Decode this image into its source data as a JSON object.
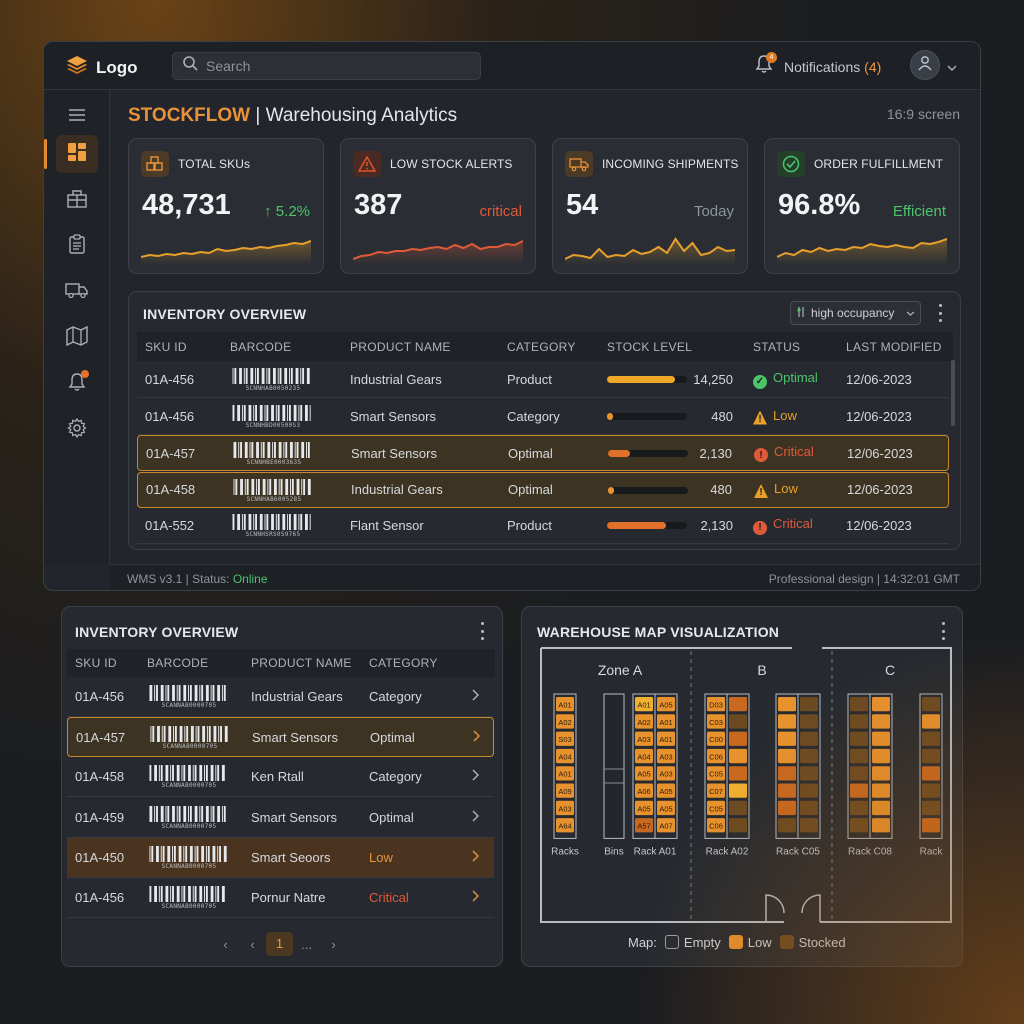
{
  "topbar": {
    "logo_text": "Logo",
    "search_placeholder": "Search",
    "notifications_label": "Notifications",
    "notifications_count": "(4)",
    "notifications_badge": "4"
  },
  "header": {
    "brand": "STOCKFLOW",
    "separator": " | ",
    "title": "Warehousing Analytics",
    "screen_label": "16:9 screen"
  },
  "kpis": [
    {
      "title": "TOTAL SKUs",
      "value": "48,731",
      "note": "↑ 5.2%",
      "note_color": "#4cc46a",
      "icon": "boxes-icon",
      "trend": [
        22,
        20,
        21,
        19,
        20,
        18,
        19,
        17,
        18,
        14,
        16,
        15,
        13,
        14,
        12,
        13,
        11,
        10,
        8,
        9,
        6
      ]
    },
    {
      "title": "LOW STOCK ALERTS",
      "value": "387",
      "note": "critical",
      "note_color": "#e05a3a",
      "icon": "warning-icon",
      "trend": [
        24,
        21,
        20,
        17,
        18,
        16,
        16,
        14,
        15,
        13,
        12,
        14,
        10,
        13,
        9,
        14,
        12,
        12,
        9,
        10,
        6
      ]
    },
    {
      "title": "INCOMING SHIPMENTS",
      "value": "54",
      "note": "Today",
      "note_color": "#8e949c",
      "icon": "truck-icon",
      "trend": [
        24,
        20,
        21,
        23,
        14,
        22,
        20,
        21,
        15,
        19,
        17,
        12,
        18,
        4,
        16,
        8,
        20,
        18,
        12,
        16,
        15
      ]
    },
    {
      "title": "ORDER FULFILLMENT",
      "value": "96.8%",
      "note": "Efficient",
      "note_color": "#4cc46a",
      "icon": "check-circle-icon",
      "trend": [
        22,
        18,
        20,
        15,
        17,
        13,
        16,
        14,
        15,
        12,
        13,
        9,
        11,
        12,
        10,
        12,
        13,
        8,
        9,
        7,
        4
      ]
    }
  ],
  "inventory_main": {
    "title": "INVENTORY OVERVIEW",
    "filter_label": "high occupancy",
    "columns": [
      "SKU ID",
      "BARCODE",
      "PRODUCT NAME",
      "CATEGORY",
      "STOCK LEVEL",
      "STATUS",
      "LAST MODIFIED"
    ],
    "rows": [
      {
        "sku": "01A-456",
        "barcode": "SCNNHAB0050235",
        "name": "Industrial Gears",
        "category": "Product",
        "stock": "14,250",
        "level": 0.85,
        "status": "Optimal",
        "status_color": "#4cc46a",
        "modified": "12/06-2023",
        "highlight": false
      },
      {
        "sku": "01A-456",
        "barcode": "SCNNHBD00500S3",
        "name": "Smart Sensors",
        "category": "Category",
        "stock": "480",
        "level": 0.06,
        "status": "Low",
        "status_color": "#e8a028",
        "modified": "12/06-2023",
        "highlight": false
      },
      {
        "sku": "01A-457",
        "barcode": "SCNNHBE0003635",
        "name": "Smart Sensors",
        "category": "Optimal",
        "stock": "2,130",
        "level": 0.28,
        "status": "Critical",
        "status_color": "#e05a3a",
        "modified": "12/06-2023",
        "highlight": true
      },
      {
        "sku": "01A-458",
        "barcode": "SCNNHAB6005285",
        "name": "Industrial Gears",
        "category": "Optimal",
        "stock": "480",
        "level": 0.06,
        "status": "Low",
        "status_color": "#e8a028",
        "modified": "12/06-2023",
        "highlight": true
      },
      {
        "sku": "01A-552",
        "barcode": "SCNNHSRS0S9765",
        "name": "Flant Sensor",
        "category": "Product",
        "stock": "2,130",
        "level": 0.74,
        "status": "Critical",
        "status_color": "#e05a3a",
        "modified": "12/06-2023",
        "highlight": false
      }
    ]
  },
  "footer": {
    "version": "WMS v3.1 | Status: ",
    "status": "Online",
    "right": "Professional design | 14:32:01 GMT"
  },
  "inventory_small": {
    "title": "INVENTORY OVERVIEW",
    "columns": [
      "SKU ID",
      "BARCODE",
      "PRODUCT NAME",
      "CATEGORY"
    ],
    "rows": [
      {
        "sku": "01A-456",
        "barcode": "SCANNAB0000705",
        "name": "Industrial Gears",
        "category": "Category",
        "cat_color": "#d5d9de",
        "style": "normal"
      },
      {
        "sku": "01A-457",
        "barcode": "SCANNAB0000705",
        "name": "Smart Sensors",
        "category": "Optimal",
        "cat_color": "#d5d9de",
        "style": "selected"
      },
      {
        "sku": "01A-458",
        "barcode": "SCANNAB0000705",
        "name": "Ken Rtall",
        "category": "Category",
        "cat_color": "#d5d9de",
        "style": "normal"
      },
      {
        "sku": "01A-459",
        "barcode": "SCANNAB0000705",
        "name": "Smart Sensors",
        "category": "Optimal",
        "cat_color": "#d5d9de",
        "style": "normal"
      },
      {
        "sku": "01A-450",
        "barcode": "SCANNAB0000705",
        "name": "Smart Seoors",
        "category": "Low",
        "cat_color": "#e8923a",
        "style": "warm"
      },
      {
        "sku": "01A-456",
        "barcode": "SCANNAB0000705",
        "name": "Pornur Natre",
        "category": "Critical",
        "cat_color": "#e05a3a",
        "style": "normal"
      }
    ],
    "pager": {
      "current": "1",
      "ellipsis": "..."
    }
  },
  "warehouse_map": {
    "title": "WAREHOUSE MAP VISUALIZATION",
    "zones": [
      "Zone A",
      "B",
      "C"
    ],
    "rack_labels": [
      "Racks",
      "Bins",
      "Rack A01",
      "Rack A02",
      "Rack C05",
      "Rack C08",
      "Rack"
    ],
    "rack_a_left": [
      "A01",
      "A02",
      "S03",
      "A04",
      "A01",
      "A09",
      "A03",
      "A64"
    ],
    "rack_a01_left": [
      "A01",
      "A02",
      "A03",
      "A04",
      "A05",
      "A06",
      "A05",
      "A57"
    ],
    "rack_a01_right": [
      "A05",
      "A01",
      "A01",
      "A03",
      "A03",
      "A05",
      "A05",
      "A07"
    ],
    "rack_a02_labels": [
      "D03",
      "C03",
      "C00",
      "C06",
      "C05",
      "C07",
      "C05",
      "C06"
    ],
    "legend_title": "Map:",
    "legend": [
      {
        "label": "Empty",
        "color": "#262a30"
      },
      {
        "label": "Low",
        "color": "#e8922e"
      },
      {
        "label": "Stocked",
        "color": "#6b4a22"
      }
    ]
  }
}
